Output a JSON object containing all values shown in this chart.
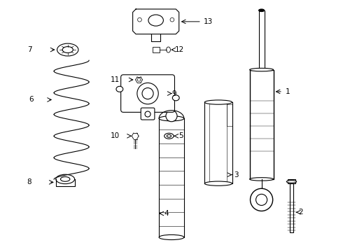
{
  "title": "",
  "background_color": "#ffffff",
  "line_color": "#000000",
  "label_color": "#000000",
  "fig_width": 4.9,
  "fig_height": 3.6,
  "dpi": 100
}
